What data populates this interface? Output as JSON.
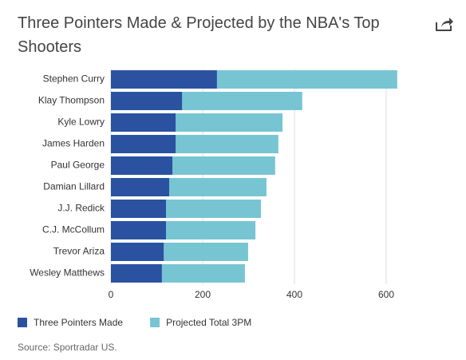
{
  "chart_data": {
    "type": "bar",
    "orientation": "horizontal",
    "overlap": true,
    "title": "Three Pointers Made & Projected by the NBA's Top Shooters",
    "source": "Source: Sportradar US.",
    "categories": [
      "Stephen Curry",
      "Klay Thompson",
      "Kyle Lowry",
      "James Harden",
      "Paul George",
      "Damian Lillard",
      "J.J. Redick",
      "C.J. McCollum",
      "Trevor Ariza",
      "Wesley Matthews"
    ],
    "series": [
      {
        "name": "Projected Total 3PM",
        "color": "#77c5d3",
        "values": [
          624,
          417,
          374,
          365,
          358,
          339,
          327,
          315,
          299,
          292
        ]
      },
      {
        "name": "Three Pointers Made",
        "color": "#2a52a0",
        "values": [
          231,
          155,
          141,
          141,
          134,
          127,
          120,
          120,
          115,
          111
        ]
      }
    ],
    "legend_order": [
      1,
      0
    ],
    "xlim": [
      0,
      625
    ],
    "xticks": [
      0,
      200,
      400,
      600
    ],
    "grid": true
  }
}
